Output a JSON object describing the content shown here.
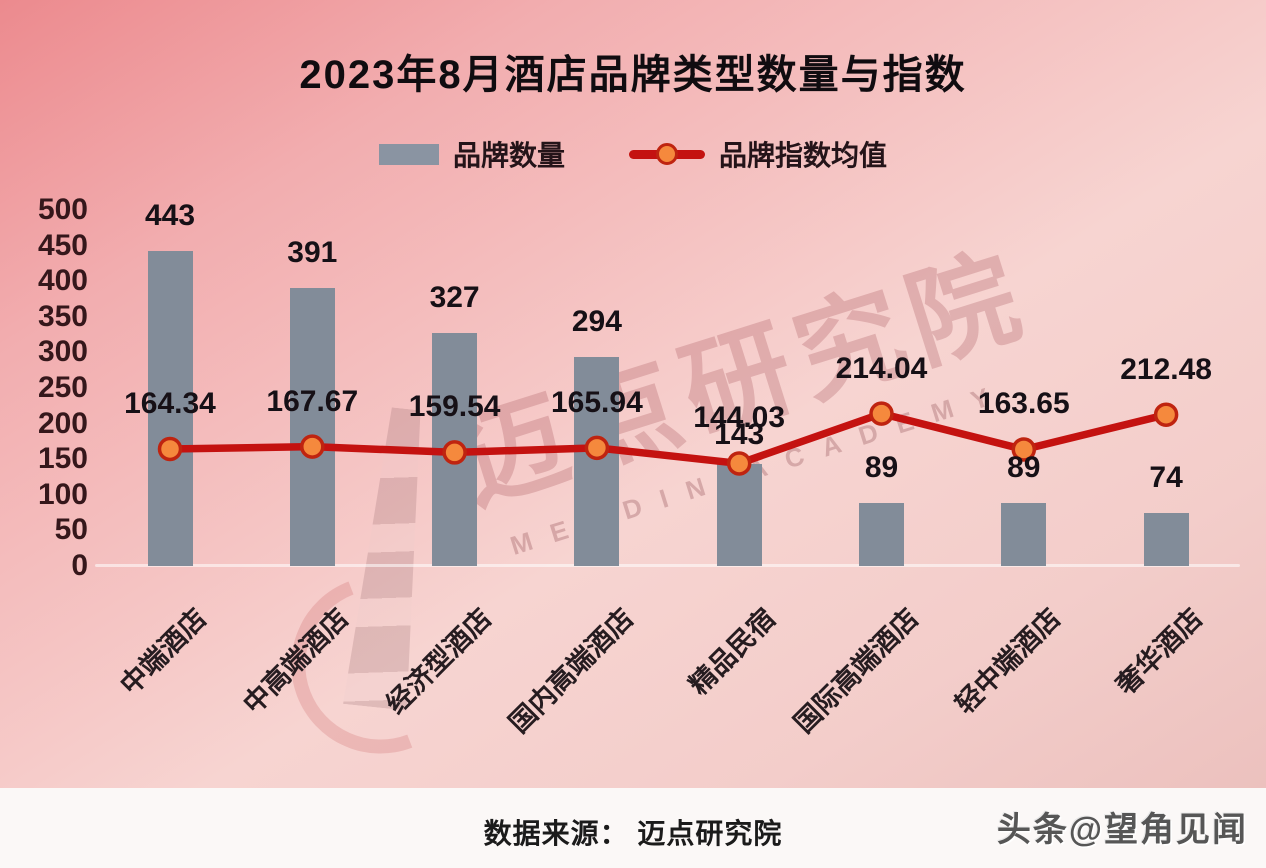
{
  "title": "2023年8月酒店品牌类型数量与指数",
  "legend": {
    "bars": "品牌数量",
    "line": "品牌指数均值"
  },
  "watermark": {
    "cn": "迈点研究院",
    "latin": "MEADIN ACADEMY"
  },
  "footer": {
    "source": "数据来源： 迈点研究院",
    "credit": "头条@望角见闻"
  },
  "colors": {
    "bar": "#828c99",
    "legend_bar_swatch": "#8a94a2",
    "line": "#c41210",
    "marker_fill": "#f5893d",
    "marker_stroke": "#bf2410",
    "background_top": "#ec8a8e",
    "background_bottom": "#ecc1be",
    "footer_bg": "#fbf8f7",
    "text_dark": "#161016"
  },
  "chart_data": {
    "type": "bar+line",
    "title": "2023年8月酒店品牌类型数量与指数",
    "categories": [
      "中端酒店",
      "中高端酒店",
      "经济型酒店",
      "国内高端酒店",
      "精品民宿",
      "国际高端酒店",
      "轻中端酒店",
      "奢华酒店"
    ],
    "series": [
      {
        "name": "品牌数量",
        "type": "bar",
        "values": [
          443,
          391,
          327,
          294,
          143,
          89,
          89,
          74
        ]
      },
      {
        "name": "品牌指数均值",
        "type": "line",
        "values": [
          164.34,
          167.67,
          159.54,
          165.94,
          144.03,
          214.04,
          163.65,
          212.48
        ]
      }
    ],
    "xlabel": "",
    "ylabel": "",
    "ylim": [
      0,
      500
    ],
    "ytick_step": 50,
    "grid": false,
    "legend_position": "top"
  }
}
